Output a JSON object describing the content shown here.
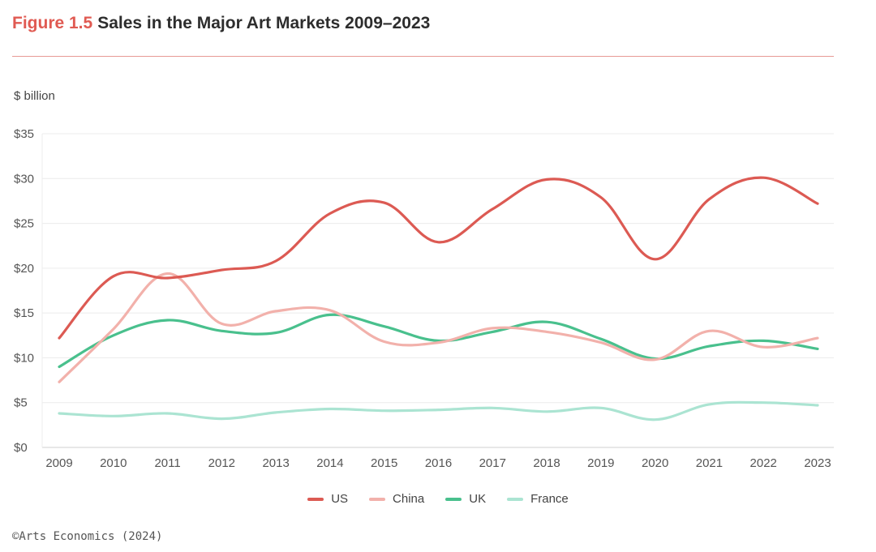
{
  "figure": {
    "label": "Figure 1.5",
    "title": "Sales in the Major Art Markets 2009–2023",
    "unit": "$ billion",
    "copyright": "©Arts Economics (2024)"
  },
  "chart_data": {
    "type": "line",
    "x": [
      "2009",
      "2010",
      "2011",
      "2012",
      "2013",
      "2014",
      "2015",
      "2016",
      "2017",
      "2018",
      "2019",
      "2020",
      "2021",
      "2022",
      "2023"
    ],
    "ylim": [
      0,
      35
    ],
    "yticks": [
      0,
      5,
      10,
      15,
      20,
      25,
      30,
      35
    ],
    "ytick_labels": [
      "$0",
      "$5",
      "$10",
      "$15",
      "$20",
      "$25",
      "$30",
      "$35"
    ],
    "grid": true,
    "legend_position": "bottom-center",
    "series": [
      {
        "name": "US",
        "color": "#dc5a53",
        "values": [
          12.2,
          19.1,
          18.9,
          19.8,
          20.8,
          26.1,
          27.3,
          22.9,
          26.6,
          29.9,
          27.9,
          21.0,
          27.7,
          30.1,
          27.2
        ]
      },
      {
        "name": "China",
        "color": "#f2b1ab",
        "values": [
          7.3,
          13.2,
          19.4,
          13.8,
          15.2,
          15.3,
          11.8,
          11.7,
          13.3,
          12.9,
          11.7,
          9.8,
          13.0,
          11.2,
          12.2
        ]
      },
      {
        "name": "UK",
        "color": "#49c08d",
        "values": [
          9.0,
          12.5,
          14.2,
          13.0,
          12.8,
          14.8,
          13.5,
          11.9,
          12.9,
          14.0,
          12.1,
          9.9,
          11.3,
          11.9,
          11.0
        ]
      },
      {
        "name": "France",
        "color": "#abe4d2",
        "values": [
          3.8,
          3.5,
          3.8,
          3.2,
          3.9,
          4.3,
          4.1,
          4.2,
          4.4,
          4.0,
          4.4,
          3.1,
          4.8,
          5.0,
          4.7
        ]
      }
    ]
  }
}
